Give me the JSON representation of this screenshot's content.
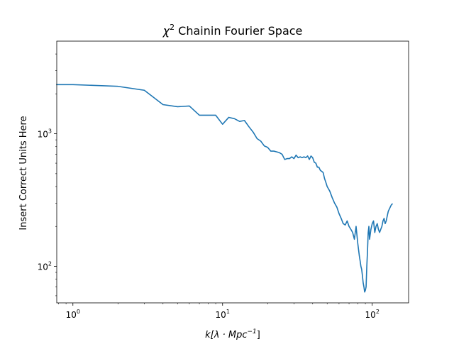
{
  "chart_data": {
    "type": "line",
    "title": {
      "base": "χ",
      "sup": "2",
      "rest": " Chainin Fourier Space"
    },
    "xlabel": {
      "prefix": "k[λ · Mpc",
      "sup": "−1",
      "suffix": "]"
    },
    "ylabel": "Insert Correct Units Here",
    "xscale": "log",
    "yscale": "log",
    "xlim": [
      0.78,
      175
    ],
    "ylim": [
      53,
      5000
    ],
    "grid": false,
    "xticks": [
      {
        "value": 1,
        "base": "10",
        "exp": "0"
      },
      {
        "value": 10,
        "base": "10",
        "exp": "1"
      },
      {
        "value": 100,
        "base": "10",
        "exp": "2"
      }
    ],
    "yticks": [
      {
        "value": 100,
        "base": "10",
        "exp": "2"
      },
      {
        "value": 1000,
        "base": "10",
        "exp": "3"
      }
    ],
    "series": [
      {
        "color": "#1f77b4",
        "x": [
          0.78,
          1,
          2,
          3,
          4,
          5,
          6,
          7,
          8,
          9,
          10,
          11,
          12,
          13,
          14,
          15,
          16,
          17,
          18,
          19,
          20,
          21,
          22,
          23,
          24,
          25,
          26,
          27,
          28,
          29,
          30,
          31,
          32,
          33,
          34,
          35,
          36,
          37,
          38,
          39,
          40,
          41,
          42,
          43,
          44,
          45,
          46,
          47,
          48,
          49,
          50,
          52,
          54,
          56,
          58,
          60,
          62,
          64,
          66,
          68,
          70,
          72,
          74,
          76,
          78,
          80,
          82,
          83,
          84,
          85,
          86,
          87,
          88,
          89,
          90,
          91,
          92,
          93,
          94,
          95,
          96,
          98,
          100,
          102,
          104,
          106,
          108,
          110,
          112,
          114,
          116,
          118,
          120,
          122,
          124,
          126,
          128,
          130,
          132,
          134,
          136
        ],
        "y": [
          2350,
          2350,
          2280,
          2130,
          1660,
          1600,
          1620,
          1380,
          1380,
          1380,
          1180,
          1330,
          1300,
          1240,
          1260,
          1130,
          1030,
          920,
          880,
          810,
          790,
          740,
          740,
          730,
          720,
          700,
          640,
          650,
          650,
          670,
          650,
          690,
          660,
          670,
          660,
          670,
          660,
          680,
          640,
          680,
          660,
          610,
          600,
          560,
          560,
          530,
          520,
          510,
          460,
          430,
          400,
          370,
          330,
          300,
          280,
          250,
          230,
          210,
          205,
          220,
          200,
          190,
          180,
          160,
          200,
          150,
          120,
          110,
          100,
          95,
          85,
          75,
          70,
          64,
          66,
          70,
          100,
          130,
          180,
          200,
          160,
          190,
          210,
          220,
          180,
          200,
          210,
          190,
          180,
          190,
          200,
          220,
          230,
          210,
          220,
          240,
          260,
          270,
          280,
          290,
          295
        ]
      }
    ]
  }
}
